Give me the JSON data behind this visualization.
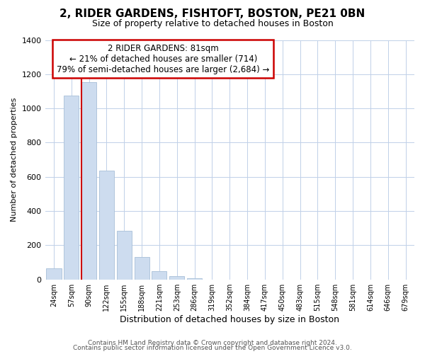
{
  "title": "2, RIDER GARDENS, FISHTOFT, BOSTON, PE21 0BN",
  "subtitle": "Size of property relative to detached houses in Boston",
  "xlabel": "Distribution of detached houses by size in Boston",
  "ylabel": "Number of detached properties",
  "bar_labels": [
    "24sqm",
    "57sqm",
    "90sqm",
    "122sqm",
    "155sqm",
    "188sqm",
    "221sqm",
    "253sqm",
    "286sqm",
    "319sqm",
    "352sqm",
    "384sqm",
    "417sqm",
    "450sqm",
    "483sqm",
    "515sqm",
    "548sqm",
    "581sqm",
    "614sqm",
    "646sqm",
    "679sqm"
  ],
  "bar_values": [
    65,
    1075,
    1155,
    635,
    285,
    130,
    48,
    20,
    8,
    0,
    0,
    0,
    0,
    0,
    0,
    0,
    0,
    0,
    0,
    0,
    0
  ],
  "bar_color": "#cddcef",
  "bar_edge_color": "#a8bfd8",
  "vline_color": "#cc0000",
  "vline_xindex": 2,
  "ylim": [
    0,
    1400
  ],
  "yticks": [
    0,
    200,
    400,
    600,
    800,
    1000,
    1200,
    1400
  ],
  "annotation_title": "2 RIDER GARDENS: 81sqm",
  "annotation_line1": "← 21% of detached houses are smaller (714)",
  "annotation_line2": "79% of semi-detached houses are larger (2,684) →",
  "annotation_box_color": "#ffffff",
  "annotation_box_edge": "#cc0000",
  "footer_line1": "Contains HM Land Registry data © Crown copyright and database right 2024.",
  "footer_line2": "Contains public sector information licensed under the Open Government Licence v3.0.",
  "background_color": "#ffffff",
  "grid_color": "#c0d0e8"
}
